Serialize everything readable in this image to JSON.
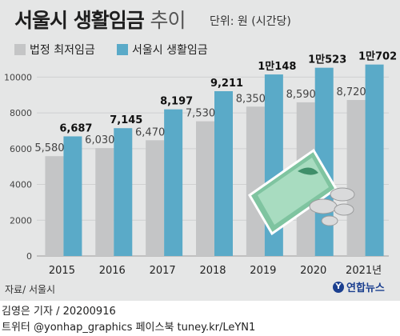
{
  "header": {
    "title": "서울시 생활임금",
    "title_suffix": "추이",
    "unit": "단위: 원 (시간당)"
  },
  "legend": {
    "items": [
      {
        "label": "법정 최저임금",
        "color": "#c4c5c6"
      },
      {
        "label": "서울시 생활임금",
        "color": "#5aaac8"
      }
    ]
  },
  "chart_data": {
    "type": "bar",
    "title": "서울시 생활임금 추이",
    "unit": "원 (시간당)",
    "categories": [
      "2015",
      "2016",
      "2017",
      "2018",
      "2019",
      "2020",
      "2021년"
    ],
    "series": [
      {
        "name": "법정 최저임금",
        "color": "#c4c5c6",
        "values": [
          5580,
          6030,
          6470,
          7530,
          8350,
          8590,
          8720
        ],
        "labels": [
          "5,580",
          "6,030",
          "6,470",
          "7,530",
          "8,350",
          "8,590",
          "8,720"
        ]
      },
      {
        "name": "서울시 생활임금",
        "color": "#5aaac8",
        "values": [
          6687,
          7145,
          8197,
          9211,
          10148,
          10523,
          10702
        ],
        "labels": [
          "6,687",
          "7,145",
          "8,197",
          "9,211",
          "1만148",
          "1만523",
          "1만702"
        ]
      }
    ],
    "ylim": [
      0,
      11000
    ],
    "yticks": [
      0,
      2000,
      4000,
      6000,
      8000,
      10000
    ],
    "ytick_labels": [
      "0",
      "2000",
      "4000",
      "6000",
      "8000",
      "10000"
    ],
    "grid": true,
    "legend_position": "top-left"
  },
  "footer": {
    "source": "자료/ 서울시",
    "logo_text": "연합뉴스",
    "credit": "김영은 기자 / 20200916",
    "social": "트위터 @yonhap_graphics  페이스북 tuney.kr/LeYN1"
  }
}
